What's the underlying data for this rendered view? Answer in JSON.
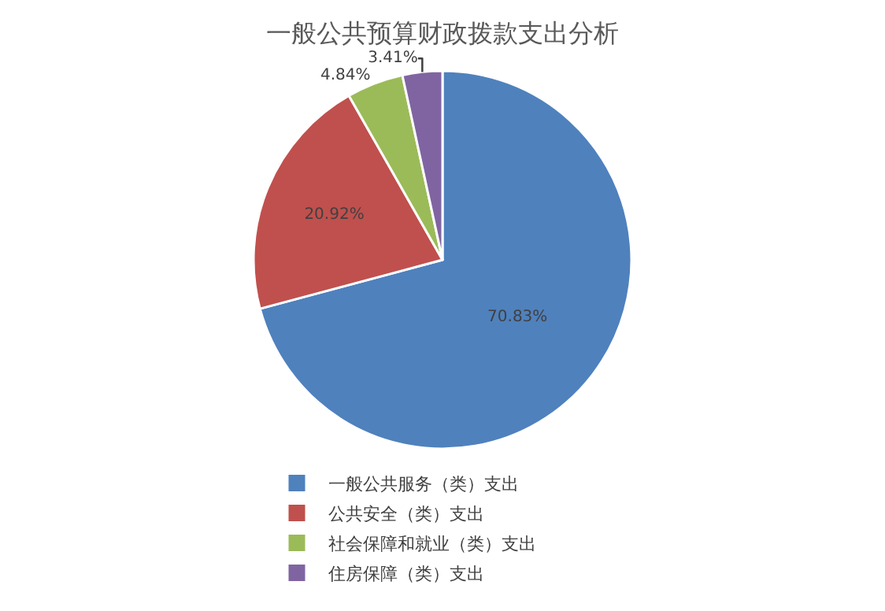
{
  "chart_data": {
    "type": "pie",
    "title": "一般公共预算财政拨款支出分析",
    "categories": [
      "一般公共服务（类）支出",
      "公共安全（类）支出",
      "社会保障和就业（类）支出",
      "住房保障（类）支出"
    ],
    "values": [
      70.83,
      20.92,
      4.84,
      3.41
    ],
    "value_labels": [
      "70.83%",
      "20.92%",
      "4.84%",
      "3.41%"
    ],
    "colors": [
      "#4f81bd",
      "#c0504d",
      "#9bbb59",
      "#8064a2"
    ],
    "legend": "bottom"
  }
}
